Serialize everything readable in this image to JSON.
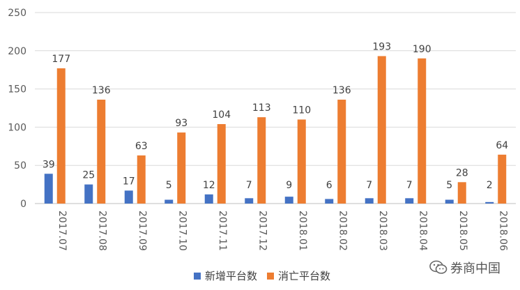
{
  "chart_data": {
    "type": "bar",
    "categories": [
      "2017.07",
      "2017.08",
      "2017.09",
      "2017.10",
      "2017.11",
      "2017.12",
      "2018.01",
      "2018.02",
      "2018.03",
      "2018.04",
      "2018.05",
      "2018.06"
    ],
    "series": [
      {
        "name": "新增平台数",
        "values": [
          39,
          25,
          17,
          5,
          12,
          7,
          9,
          6,
          7,
          7,
          5,
          2
        ],
        "color": "#4472c4"
      },
      {
        "name": "消亡平台数",
        "values": [
          177,
          136,
          63,
          93,
          104,
          113,
          110,
          136,
          193,
          190,
          28,
          64
        ],
        "color": "#ed7d31"
      }
    ],
    "ylim": [
      0,
      250
    ],
    "yticks": [
      0,
      50,
      100,
      150,
      200,
      250
    ],
    "grid": true,
    "legend": "bottom"
  },
  "watermark": {
    "text": "券商中国",
    "icon": "wechat-icon"
  }
}
